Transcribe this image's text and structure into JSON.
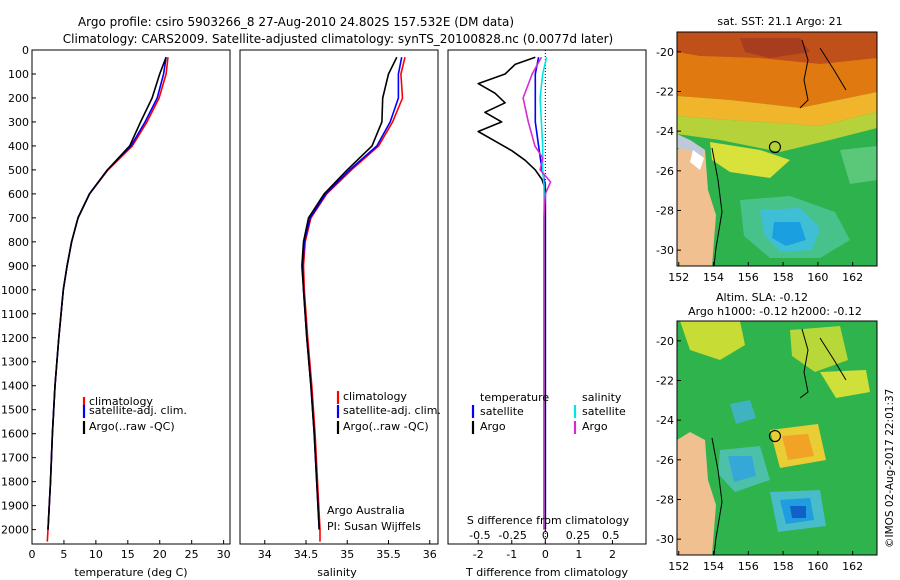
{
  "header": {
    "line1": "Argo profile: csiro 5903266_8 27-Aug-2010 24.802S 157.532E (DM data)",
    "line2": "Climatology: CARS2009. Satellite-adjusted climatology: synTS_20100828.nc (0.0077d later)"
  },
  "stamp": "©IMOS 02-Aug-2017 22:01:37",
  "colors": {
    "climatology": "#ff0000",
    "satellite": "#0000ff",
    "argo": "#000000",
    "sal_satellite": "#00e5e5",
    "sal_argo": "#d62ad6"
  },
  "chart_data": [
    {
      "id": "temperature",
      "type": "line",
      "xlabel": "temperature (deg C)",
      "ylabel": "",
      "xlim": [
        0,
        31
      ],
      "ylim": [
        2060,
        0
      ],
      "xticks": [
        "0",
        "5",
        "10",
        "15",
        "20",
        "25",
        "30"
      ],
      "xtick_values": [
        0,
        5,
        10,
        15,
        20,
        25,
        30
      ],
      "yticks": [
        "0",
        "100",
        "200",
        "300",
        "400",
        "500",
        "600",
        "700",
        "800",
        "900",
        "1000",
        "1100",
        "1200",
        "1300",
        "1400",
        "1500",
        "1600",
        "1700",
        "1800",
        "1900",
        "2000"
      ],
      "ytick_values": [
        0,
        100,
        200,
        300,
        400,
        500,
        600,
        700,
        800,
        900,
        1000,
        1100,
        1200,
        1300,
        1400,
        1500,
        1600,
        1700,
        1800,
        1900,
        2000
      ],
      "legend": [
        "climatology",
        "satellite-adj. clim.",
        "Argo(..raw -QC)"
      ],
      "series": [
        {
          "name": "climatology",
          "depth": [
            30,
            100,
            200,
            300,
            400,
            500,
            600,
            700,
            800,
            900,
            1000,
            1200,
            1400,
            1600,
            1800,
            2000,
            2050
          ],
          "values": [
            21.3,
            21.0,
            19.9,
            18.0,
            15.7,
            11.9,
            9.0,
            7.2,
            6.2,
            5.5,
            4.9,
            4.2,
            3.6,
            3.2,
            2.9,
            2.5,
            2.4
          ]
        },
        {
          "name": "satellite",
          "depth": [
            30,
            100,
            200,
            300,
            400,
            500,
            600,
            700,
            800,
            900,
            1000,
            1200,
            1400,
            1600,
            1800,
            2000
          ],
          "values": [
            21.0,
            20.6,
            19.6,
            17.7,
            15.5,
            11.8,
            9.0,
            7.2,
            6.2,
            5.5,
            4.9,
            4.2,
            3.6,
            3.2,
            2.9,
            2.5
          ]
        },
        {
          "name": "Argo",
          "depth": [
            30,
            100,
            200,
            300,
            400,
            500,
            600,
            700,
            800,
            900,
            1000,
            1200,
            1400,
            1600,
            1800,
            2000
          ],
          "values": [
            21.0,
            20.0,
            18.8,
            17.0,
            15.3,
            11.8,
            9.0,
            7.2,
            6.2,
            5.5,
            4.9,
            4.2,
            3.6,
            3.2,
            2.9,
            2.5
          ]
        }
      ]
    },
    {
      "id": "salinity",
      "type": "line",
      "xlabel": "salinity",
      "ylabel": "",
      "xlim": [
        33.7,
        36.1
      ],
      "ylim": [
        2060,
        0
      ],
      "xticks": [
        "34",
        "34.5",
        "35",
        "35.5",
        "36"
      ],
      "xtick_values": [
        34,
        34.5,
        35,
        35.5,
        36
      ],
      "legend": [
        "climatology",
        "satellite-adj. clim.",
        "Argo(..raw -QC)"
      ],
      "annotation": [
        "Argo Australia",
        "PI: Susan Wijffels"
      ],
      "series": [
        {
          "name": "climatology",
          "depth": [
            30,
            100,
            200,
            300,
            400,
            500,
            600,
            700,
            800,
            900,
            1000,
            1200,
            1400,
            1600,
            1800,
            2000,
            2050
          ],
          "values": [
            35.7,
            35.65,
            35.67,
            35.55,
            35.38,
            35.05,
            34.75,
            34.56,
            34.49,
            34.47,
            34.48,
            34.52,
            34.57,
            34.61,
            34.64,
            34.67,
            34.67
          ]
        },
        {
          "name": "satellite",
          "depth": [
            30,
            100,
            200,
            300,
            400,
            500,
            600,
            700,
            800,
            900,
            1000,
            1200,
            1400,
            1600,
            1800,
            2000
          ],
          "values": [
            35.66,
            35.62,
            35.62,
            35.52,
            35.36,
            35.03,
            34.74,
            34.55,
            34.48,
            34.46,
            34.47,
            34.51,
            34.56,
            34.6,
            34.63,
            34.66
          ]
        },
        {
          "name": "Argo",
          "depth": [
            30,
            100,
            200,
            300,
            400,
            500,
            600,
            700,
            800,
            900,
            1000,
            1200,
            1400,
            1600,
            1800,
            2000
          ],
          "values": [
            35.6,
            35.5,
            35.43,
            35.42,
            35.3,
            35.0,
            34.72,
            34.53,
            34.47,
            34.45,
            34.47,
            34.51,
            34.56,
            34.6,
            34.63,
            34.66
          ]
        }
      ]
    },
    {
      "id": "difference",
      "type": "line",
      "xlabel": "T difference from climatology",
      "xlabel_top": "S difference from climatology",
      "xlim": [
        -2.9,
        3.0
      ],
      "ylim": [
        2060,
        0
      ],
      "xticks": [
        "-2",
        "-1",
        "0",
        "1",
        "2"
      ],
      "xtick_values": [
        -2,
        -1,
        0,
        1,
        2
      ],
      "s_ticks": [
        "-0.5",
        "-0.25",
        "0",
        "0.25",
        "0.5"
      ],
      "s_tick_values": [
        -0.5,
        -0.25,
        0,
        0.25,
        0.5
      ],
      "legend_titles": [
        "temperature",
        "salinity"
      ],
      "legend": [
        "satellite",
        "Argo",
        "satellite",
        "Argo"
      ],
      "series": [
        {
          "name": "T satellite",
          "depth": [
            30,
            100,
            200,
            300,
            400,
            500,
            560,
            600,
            700,
            900,
            1200,
            1600,
            2000
          ],
          "values": [
            -0.2,
            -0.3,
            -0.3,
            -0.3,
            -0.2,
            -0.1,
            0.0,
            0.0,
            0.0,
            0.0,
            0.0,
            0.0,
            0.0
          ]
        },
        {
          "name": "T Argo",
          "depth": [
            30,
            60,
            100,
            140,
            180,
            220,
            260,
            300,
            340,
            380,
            420,
            460,
            500,
            540,
            580,
            600,
            650,
            700,
            800,
            900,
            1200,
            1600,
            2000
          ],
          "values": [
            -0.3,
            -0.9,
            -1.2,
            -2.0,
            -1.5,
            -1.2,
            -1.8,
            -1.3,
            -2.0,
            -1.5,
            -1.0,
            -0.6,
            -0.3,
            -0.1,
            0.0,
            0.0,
            0.0,
            0.0,
            0.0,
            0.0,
            0.0,
            0.0,
            0.0
          ]
        },
        {
          "name": "S satellite",
          "depth": [
            30,
            100,
            200,
            300,
            400,
            500,
            560,
            600,
            700,
            900,
            1200,
            1600,
            2000
          ],
          "values": [
            0.01,
            -0.02,
            -0.04,
            -0.03,
            -0.02,
            -0.02,
            -0.01,
            -0.01,
            -0.01,
            -0.01,
            -0.01,
            -0.01,
            -0.01
          ]
        },
        {
          "name": "S Argo",
          "depth": [
            30,
            100,
            200,
            300,
            400,
            450,
            500,
            550,
            600,
            700,
            900,
            1200,
            1600,
            2000
          ],
          "values": [
            -0.03,
            -0.1,
            -0.17,
            -0.13,
            -0.08,
            -0.02,
            -0.04,
            0.04,
            0.0,
            -0.01,
            -0.01,
            -0.01,
            -0.01,
            -0.01
          ]
        }
      ]
    },
    {
      "id": "sst_map",
      "type": "heatmap",
      "title": "sat. SST: 21.1  Argo: 21",
      "xticks": [
        "152",
        "154",
        "156",
        "158",
        "160",
        "162"
      ],
      "xtick_values": [
        152,
        154,
        156,
        158,
        160,
        162
      ],
      "yticks": [
        "-20",
        "-22",
        "-24",
        "-26",
        "-28",
        "-30"
      ],
      "ytick_values": [
        -20,
        -22,
        -24,
        -26,
        -28,
        -30
      ],
      "xlim": [
        151.9,
        163.4
      ],
      "ylim": [
        -30.8,
        -19.0
      ],
      "marker": {
        "lon": 157.532,
        "lat": -24.802
      }
    },
    {
      "id": "sla_map",
      "type": "heatmap",
      "title": "Altim. SLA: -0.12",
      "subtitle": "Argo h1000: -0.12  h2000: -0.12",
      "xticks": [
        "152",
        "154",
        "156",
        "158",
        "160",
        "162"
      ],
      "xtick_values": [
        152,
        154,
        156,
        158,
        160,
        162
      ],
      "yticks": [
        "-20",
        "-22",
        "-24",
        "-26",
        "-28",
        "-30"
      ],
      "ytick_values": [
        -20,
        -22,
        -24,
        -26,
        -28,
        -30
      ],
      "xlim": [
        151.9,
        163.4
      ],
      "ylim": [
        -30.8,
        -19.0
      ],
      "marker": {
        "lon": 157.532,
        "lat": -24.802
      }
    }
  ]
}
